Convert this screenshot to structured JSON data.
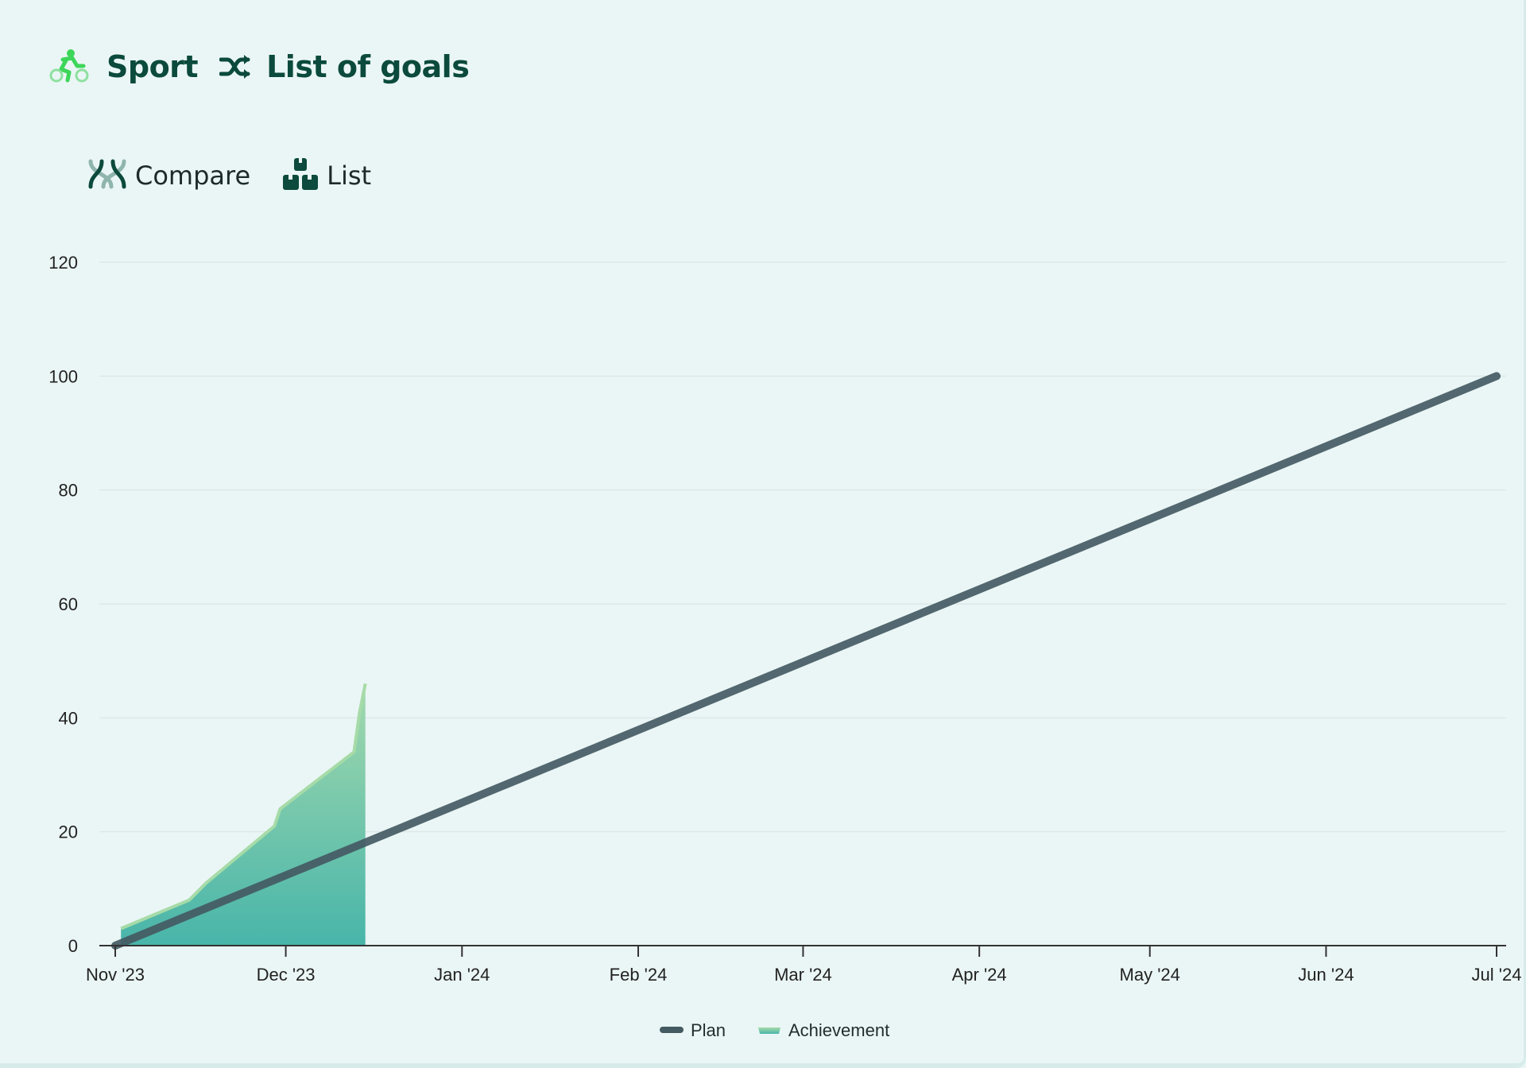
{
  "header": {
    "category_icon": "cyclist-icon",
    "category_label": "Sport",
    "separator_icon": "shuffle-icon",
    "goal_label": "List of goals"
  },
  "toolbar": {
    "compare_icon": "compare-icon",
    "compare_label": "Compare",
    "list_icon": "list-blocks-icon",
    "list_label": "List"
  },
  "colors": {
    "background": "#eaf6f5",
    "heading": "#0b4a3c",
    "plan_line": "#445a63",
    "achievement_top": "#8fd0a6",
    "achievement_bottom": "#4bb6aa",
    "achievement_stroke": "#a6dba8",
    "grid": "#dde8e8",
    "icon_green": "#3dd65a"
  },
  "chart_data": {
    "type": "area",
    "title": "",
    "xlabel": "",
    "ylabel": "",
    "ylim": [
      0,
      120
    ],
    "yticks": [
      "0",
      "20",
      "40",
      "60",
      "80",
      "100",
      "120"
    ],
    "xlim": [
      "2023-11-01",
      "2024-07-01"
    ],
    "xticks": [
      {
        "date": "2023-11-01",
        "label": "Nov '23"
      },
      {
        "date": "2023-12-01",
        "label": "Dec '23"
      },
      {
        "date": "2024-01-01",
        "label": "Jan '24"
      },
      {
        "date": "2024-02-01",
        "label": "Feb '24"
      },
      {
        "date": "2024-03-01",
        "label": "Mar '24"
      },
      {
        "date": "2024-04-01",
        "label": "Apr '24"
      },
      {
        "date": "2024-05-01",
        "label": "May '24"
      },
      {
        "date": "2024-06-01",
        "label": "Jun '24"
      },
      {
        "date": "2024-07-01",
        "label": "Jul '24"
      }
    ],
    "grid": true,
    "legend_position": "bottom-center",
    "series": [
      {
        "name": "Plan",
        "type": "line",
        "points": [
          {
            "x": "2023-11-01",
            "y": 0
          },
          {
            "x": "2024-07-01",
            "y": 100
          }
        ]
      },
      {
        "name": "Achievement",
        "type": "area",
        "points": [
          {
            "x": "2023-11-02",
            "y": 0
          },
          {
            "x": "2023-11-02",
            "y": 3
          },
          {
            "x": "2023-11-14",
            "y": 8
          },
          {
            "x": "2023-11-17",
            "y": 11
          },
          {
            "x": "2023-11-29",
            "y": 21
          },
          {
            "x": "2023-11-30",
            "y": 24
          },
          {
            "x": "2023-12-13",
            "y": 34
          },
          {
            "x": "2023-12-14",
            "y": 41
          },
          {
            "x": "2023-12-15",
            "y": 46
          },
          {
            "x": "2023-12-15",
            "y": 0
          }
        ]
      }
    ]
  }
}
